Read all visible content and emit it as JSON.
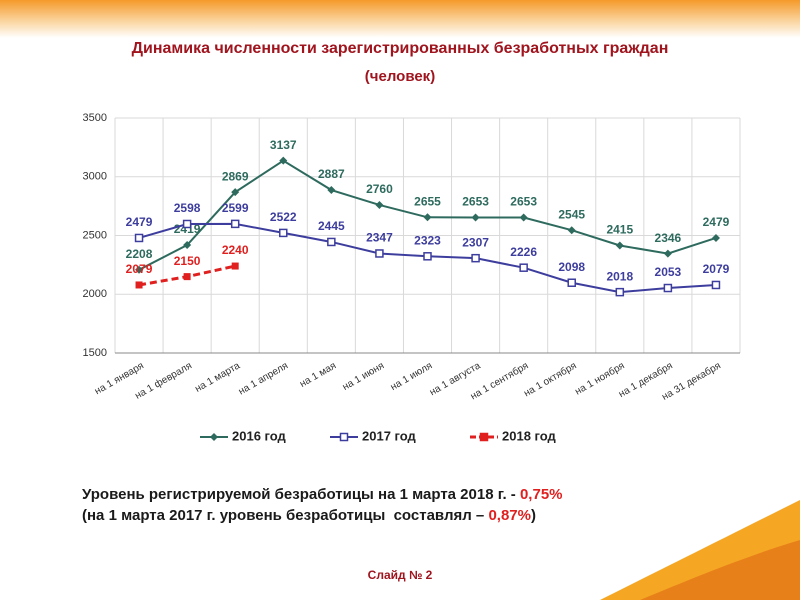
{
  "chart_data": {
    "type": "line",
    "title": "Динамика численности зарегистрированных безработных граждан",
    "subtitle": "(человек)",
    "categories": [
      "на 1 января",
      "на 1 февраля",
      "на 1 марта",
      "на 1 апреля",
      "на 1 мая",
      "на 1 июня",
      "на 1 июля",
      "на 1 августа",
      "на 1 сентября",
      "на 1 октября",
      "на 1 ноября",
      "на 1 декабря",
      "на 31 декабря"
    ],
    "series": [
      {
        "name": "2016 год",
        "color": "#2e6b5e",
        "marker": "diamond",
        "values": [
          2208,
          2419,
          2869,
          3137,
          2887,
          2760,
          2655,
          2653,
          2653,
          2545,
          2415,
          2346,
          2479
        ]
      },
      {
        "name": "2017 год",
        "color": "#3d3d9e",
        "marker": "square-open",
        "values": [
          2479,
          2598,
          2599,
          2522,
          2445,
          2347,
          2323,
          2307,
          2226,
          2098,
          2018,
          2053,
          2079
        ]
      },
      {
        "name": "2018 год",
        "color": "#e01f1f",
        "marker": "square",
        "dashed": true,
        "values": [
          2079,
          2150,
          2240,
          null,
          null,
          null,
          null,
          null,
          null,
          null,
          null,
          null,
          null
        ]
      }
    ],
    "ylim": [
      1500,
      3500
    ],
    "yticks": [
      1500,
      2000,
      2500,
      3000,
      3500
    ],
    "grid": true,
    "legend": "bottom"
  },
  "footnote": {
    "line1": {
      "text": "Уровень регистрируемой безработицы на 1 марта 2018 г. - ",
      "highlight": "0,75%"
    },
    "line2": {
      "text": "(на 1 марта 2017 г. уровень безработицы  составлял – ",
      "highlight": "0,87%",
      "tail": ")"
    }
  },
  "slide_label": "Слайд № 2"
}
